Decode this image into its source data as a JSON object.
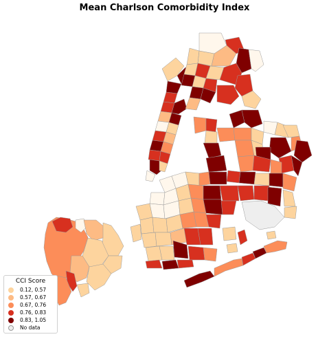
{
  "title": "Mean Charlson Comorbidity Index",
  "legend": {
    "title": "CCI Score",
    "items": [
      {
        "label": "0.12, 0.57",
        "color": "#fdd49e"
      },
      {
        "label": "0.57, 0.67",
        "color": "#fdbb84"
      },
      {
        "label": "0.67, 0.76",
        "color": "#fc8d59"
      },
      {
        "label": "0.76, 0.83",
        "color": "#d7301f"
      },
      {
        "label": "0.83, 1.05",
        "color": "#7f0000"
      },
      {
        "label": "No data",
        "color": "#eeeeee"
      }
    ]
  },
  "colors": {
    "lowest": "#fff7ec",
    "c1": "#fdd49e",
    "c2": "#fdbb84",
    "c3": "#fc8d59",
    "c4": "#d7301f",
    "c5": "#7f0000",
    "nodata": "#eeeeee",
    "border": "#9a9a9a"
  }
}
